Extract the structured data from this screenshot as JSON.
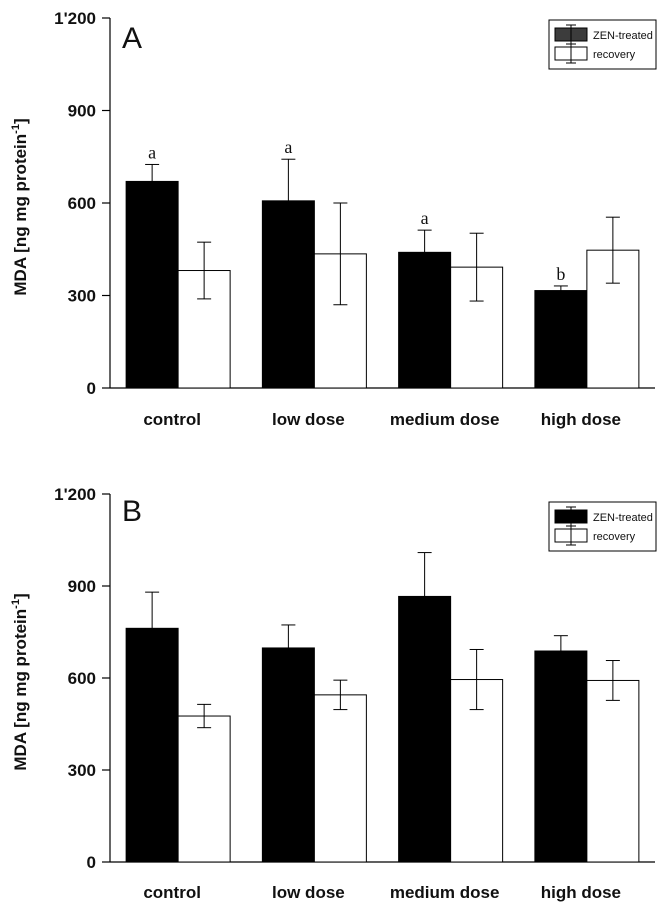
{
  "chart_data": [
    {
      "type": "bar",
      "panel_label": "A",
      "ylabel": "MDA [ng mg protein",
      "ylabel_sup": "-1",
      "ylabel_end": "]",
      "ylim": [
        0,
        1200
      ],
      "yticks": [
        "0",
        "300",
        "600",
        "900",
        "1'200"
      ],
      "ytick_values": [
        0,
        300,
        600,
        900,
        1200
      ],
      "categories": [
        "control",
        "low dose",
        "medium dose",
        "high dose"
      ],
      "series": [
        {
          "name": "ZEN-treated",
          "color": "#000000",
          "values": [
            670,
            607,
            440,
            316
          ],
          "errors": [
            55,
            135,
            72,
            15
          ],
          "labels": [
            "a",
            "a",
            "a",
            "b"
          ]
        },
        {
          "name": "recovery",
          "color": "#ffffff",
          "values": [
            381,
            435,
            392,
            447
          ],
          "errors": [
            92,
            165,
            110,
            107
          ],
          "labels": [
            "",
            "",
            "",
            ""
          ]
        }
      ],
      "legend_position": "top-right",
      "legend_first_color": "#3c3c3c",
      "grid": false
    },
    {
      "type": "bar",
      "panel_label": "B",
      "ylabel": "MDA [ng mg protein",
      "ylabel_sup": "-1",
      "ylabel_end": "]",
      "ylim": [
        0,
        1200
      ],
      "yticks": [
        "0",
        "300",
        "600",
        "900",
        "1'200"
      ],
      "ytick_values": [
        0,
        300,
        600,
        900,
        1200
      ],
      "categories": [
        "control",
        "low dose",
        "medium dose",
        "high dose"
      ],
      "series": [
        {
          "name": "ZEN-treated",
          "color": "#000000",
          "values": [
            762,
            698,
            866,
            688
          ],
          "errors": [
            118,
            75,
            143,
            50
          ],
          "labels": [
            "",
            "",
            "",
            ""
          ]
        },
        {
          "name": "recovery",
          "color": "#ffffff",
          "values": [
            476,
            545,
            595,
            592
          ],
          "errors": [
            38,
            48,
            98,
            65
          ],
          "labels": [
            "",
            "",
            "",
            ""
          ]
        }
      ],
      "legend_position": "top-right",
      "legend_first_color": "#000000",
      "grid": false
    }
  ]
}
